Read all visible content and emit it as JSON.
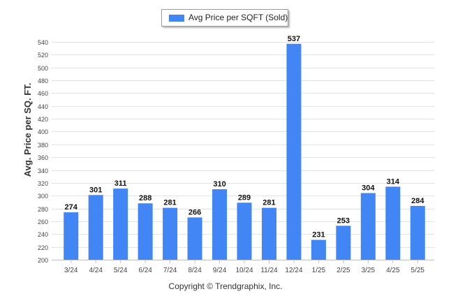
{
  "chart_data": {
    "type": "bar",
    "categories": [
      "3/24",
      "4/24",
      "5/24",
      "6/24",
      "7/24",
      "8/24",
      "9/24",
      "10/24",
      "11/24",
      "12/24",
      "1/25",
      "2/25",
      "3/25",
      "4/25",
      "5/25"
    ],
    "series": [
      {
        "name": "Avg Price per SQFT (Sold)",
        "values": [
          274,
          301,
          311,
          288,
          281,
          266,
          310,
          289,
          281,
          537,
          231,
          253,
          304,
          314,
          284
        ]
      }
    ],
    "title": "",
    "xlabel": "",
    "ylabel": "Avg. Price per SQ. FT.",
    "ylim": [
      200,
      540
    ],
    "yticks": [
      200,
      220,
      240,
      260,
      280,
      300,
      320,
      340,
      360,
      380,
      400,
      420,
      440,
      460,
      480,
      500,
      520,
      540
    ],
    "grid": true,
    "legend_position": "top-center",
    "bar_color": "#4285f4",
    "data_labels": true
  },
  "footer": {
    "copyright": "Copyright © Trendgraphix, Inc."
  }
}
